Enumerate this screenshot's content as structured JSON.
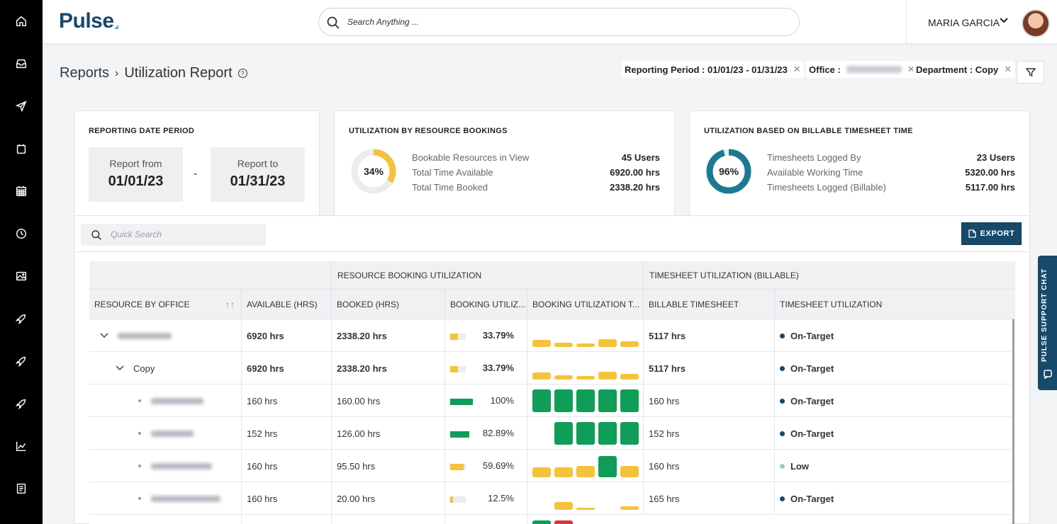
{
  "brand": {
    "name": "Pulse"
  },
  "search": {
    "placeholder": "Search Anything ..."
  },
  "user": {
    "name": "MARIA GARCIA"
  },
  "rail": [
    "home-icon",
    "inbox-icon",
    "send-icon",
    "calendar-icon",
    "schedule-grid-icon",
    "clock-icon",
    "image-icon",
    "rocket-icon",
    "rocket-icon",
    "rocket-icon",
    "analytics-icon",
    "reports-icon"
  ],
  "breadcrumb": {
    "root": "Reports",
    "current": "Utilization Report",
    "help": "?"
  },
  "filters": [
    {
      "label": "Reporting Period : 01/01/23 - 01/31/23"
    },
    {
      "label": "Office :"
    },
    {
      "label": "Department : Copy"
    }
  ],
  "date_card": {
    "title": "REPORTING DATE PERIOD",
    "from_label": "Report from",
    "from_value": "01/01/23",
    "separator": "-",
    "to_label": "Report to",
    "to_value": "01/31/23"
  },
  "booking_card": {
    "title": "UTILIZATION BY RESOURCE BOOKINGS",
    "percent_label": "34%",
    "percent_value": 0.3379,
    "color": "#f5c23b",
    "stats": [
      {
        "label": "Bookable Resources in View",
        "value": "45 Users"
      },
      {
        "label": "Total Time Available",
        "value": "6920.00 hrs"
      },
      {
        "label": "Total Time Booked",
        "value": "2338.20 hrs"
      }
    ]
  },
  "timesheet_card": {
    "title": "UTILIZATION BASED ON BILLABLE TIMESHEET TIME",
    "percent_label": "96%",
    "percent_value": 0.96,
    "color": "#1b7a92",
    "stats": [
      {
        "label": "Timesheets Logged By",
        "value": "23 Users"
      },
      {
        "label": "Available Working Time",
        "value": "5320.00 hrs"
      },
      {
        "label": "Timesheets Logged (Billable)",
        "value": "5117.00 hrs"
      }
    ]
  },
  "table_tools": {
    "quick_search_placeholder": "Quick Search",
    "export_label": "EXPORT"
  },
  "table": {
    "groups": [
      "RESOURCE BOOKING UTILIZATION",
      "TIMESHEET UTILIZATION (BILLABLE)"
    ],
    "columns": [
      "RESOURCE BY OFFICE",
      "AVAILABLE (HRS)",
      "BOOKED (HRS)",
      "BOOKING UTILIZ...",
      "BOOKING UTILIZATION T...",
      "BILLABLE TIMESHEET",
      "TIMESHEET UTILIZATION"
    ],
    "sort_icon": "↑↑",
    "colors": {
      "yellow": "#f5c23b",
      "green": "#0f9d58",
      "red": "#d9363e",
      "on_target": "#17496b",
      "low": "#9fc9cf"
    },
    "rows": [
      {
        "level": 0,
        "name": "",
        "available": "6920 hrs",
        "booked": "2338.20 hrs",
        "util": 0.3379,
        "util_label": "33.79%",
        "trend": [
          {
            "h": 0.3,
            "c": "yellow"
          },
          {
            "h": 0.2,
            "c": "yellow"
          },
          {
            "h": 0.15,
            "c": "yellow"
          },
          {
            "h": 0.35,
            "c": "yellow"
          },
          {
            "h": 0.25,
            "c": "yellow"
          }
        ],
        "billable": "5117 hrs",
        "status": "On-Target",
        "status_color": "on_target",
        "bold": true
      },
      {
        "level": 1,
        "name": "Copy",
        "available": "6920 hrs",
        "booked": "2338.20 hrs",
        "util": 0.3379,
        "util_label": "33.79%",
        "trend": [
          {
            "h": 0.3,
            "c": "yellow"
          },
          {
            "h": 0.2,
            "c": "yellow"
          },
          {
            "h": 0.15,
            "c": "yellow"
          },
          {
            "h": 0.35,
            "c": "yellow"
          },
          {
            "h": 0.25,
            "c": "yellow"
          }
        ],
        "billable": "5117 hrs",
        "status": "On-Target",
        "status_color": "on_target",
        "bold": true
      },
      {
        "level": 2,
        "name": "",
        "available": "160 hrs",
        "booked": "160.00 hrs",
        "util": 1.0,
        "util_label": "100%",
        "trend": [
          {
            "h": 1,
            "c": "green"
          },
          {
            "h": 1,
            "c": "green"
          },
          {
            "h": 1,
            "c": "green"
          },
          {
            "h": 1,
            "c": "green"
          },
          {
            "h": 1,
            "c": "green"
          }
        ],
        "billable": "160 hrs",
        "status": "On-Target",
        "status_color": "on_target",
        "bold": false
      },
      {
        "level": 2,
        "name": "",
        "available": "152 hrs",
        "booked": "126.00 hrs",
        "util": 0.8289,
        "util_label": "82.89%",
        "trend": [
          {
            "h": 0,
            "c": "green"
          },
          {
            "h": 1,
            "c": "green"
          },
          {
            "h": 1,
            "c": "green"
          },
          {
            "h": 1,
            "c": "green"
          },
          {
            "h": 1,
            "c": "green"
          }
        ],
        "billable": "152 hrs",
        "status": "On-Target",
        "status_color": "on_target",
        "bold": false
      },
      {
        "level": 2,
        "name": "",
        "available": "160 hrs",
        "booked": "95.50 hrs",
        "util": 0.5969,
        "util_label": "59.69%",
        "trend": [
          {
            "h": 0.45,
            "c": "yellow"
          },
          {
            "h": 0.45,
            "c": "yellow"
          },
          {
            "h": 0.5,
            "c": "yellow"
          },
          {
            "h": 0.95,
            "c": "green"
          },
          {
            "h": 0.5,
            "c": "yellow"
          }
        ],
        "billable": "160 hrs",
        "status": "Low",
        "status_color": "low",
        "bold": false
      },
      {
        "level": 2,
        "name": "",
        "available": "160 hrs",
        "booked": "20.00 hrs",
        "util": 0.125,
        "util_label": "12.5%",
        "trend": [
          {
            "h": 0,
            "c": "yellow"
          },
          {
            "h": 0.35,
            "c": "yellow"
          },
          {
            "h": 0.08,
            "c": "yellow"
          },
          {
            "h": 0,
            "c": "yellow"
          },
          {
            "h": 0.15,
            "c": "yellow"
          }
        ],
        "billable": "165 hrs",
        "status": "On-Target",
        "status_color": "on_target",
        "bold": false
      }
    ],
    "partial_row_trend": [
      {
        "c": "green"
      },
      {
        "c": "red"
      }
    ]
  },
  "support_chat": {
    "label": "PULSE SUPPORT CHAT"
  }
}
